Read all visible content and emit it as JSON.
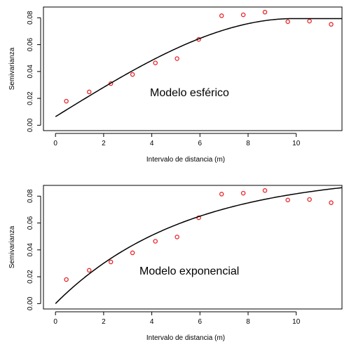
{
  "chart_data": [
    {
      "type": "scatter",
      "annotation": "Modelo esférico",
      "xlabel": "Intervalo de distancia (m)",
      "ylabel": "Semivarianza",
      "xlim": [
        -0.5,
        11.9
      ],
      "ylim": [
        -0.004,
        0.088
      ],
      "xticks": [
        0,
        2,
        4,
        6,
        8,
        10
      ],
      "yticks": [
        0.0,
        0.02,
        0.04,
        0.06,
        0.08
      ],
      "ytick_labels": [
        "0.00",
        "0.02",
        "0.04",
        "0.06",
        "0.08"
      ],
      "point_color": "#e8262a",
      "line_color": "#000000",
      "points": {
        "x": [
          0.45,
          1.4,
          2.3,
          3.2,
          4.15,
          5.05,
          5.95,
          6.9,
          7.8,
          8.7,
          9.65,
          10.55,
          11.45
        ],
        "y": [
          0.0179,
          0.0248,
          0.031,
          0.0378,
          0.0464,
          0.0496,
          0.0639,
          0.0815,
          0.0822,
          0.0842,
          0.0771,
          0.0775,
          0.0751
        ]
      },
      "model": {
        "kind": "spherical",
        "nugget": 0.0064,
        "sill": 0.0794,
        "range": 9.9
      }
    },
    {
      "type": "scatter",
      "annotation": "Modelo exponencial",
      "xlabel": "Intervalo de distancia (m)",
      "ylabel": "Semivarianza",
      "xlim": [
        -0.5,
        11.9
      ],
      "ylim": [
        -0.004,
        0.088
      ],
      "xticks": [
        0,
        2,
        4,
        6,
        8,
        10
      ],
      "yticks": [
        0.0,
        0.02,
        0.04,
        0.06,
        0.08
      ],
      "ytick_labels": [
        "0.00",
        "0.02",
        "0.04",
        "0.06",
        "0.08"
      ],
      "point_color": "#e8262a",
      "line_color": "#000000",
      "points": {
        "x": [
          0.45,
          1.4,
          2.3,
          3.2,
          4.15,
          5.05,
          5.95,
          6.9,
          7.8,
          8.7,
          9.65,
          10.55,
          11.45
        ],
        "y": [
          0.0179,
          0.0248,
          0.031,
          0.0378,
          0.0464,
          0.0496,
          0.0639,
          0.0815,
          0.0822,
          0.0842,
          0.0771,
          0.0775,
          0.0751
        ]
      },
      "model": {
        "kind": "exponential",
        "nugget": 0.0,
        "sill": 0.097,
        "range": 5.4
      }
    }
  ]
}
